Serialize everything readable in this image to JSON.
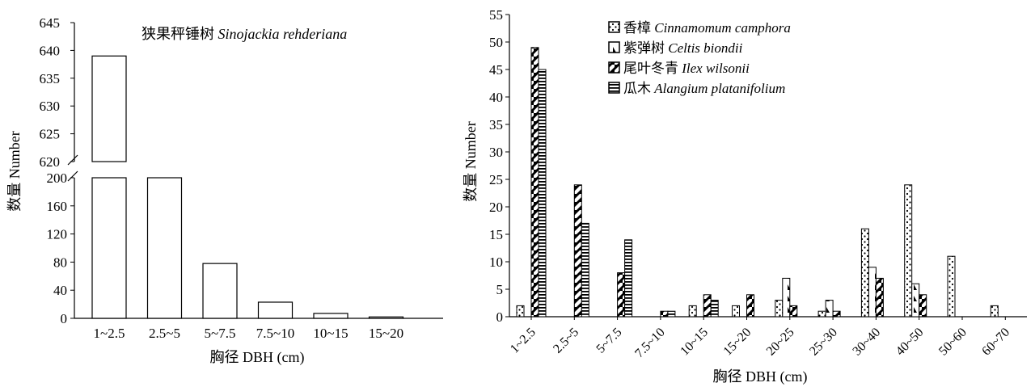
{
  "chart_data": [
    {
      "type": "bar",
      "title": "狭果秤锤树 Sinojackia rehderiana",
      "xlabel": "胸径 DBH (cm)",
      "ylabel": "数量 Number",
      "categories": [
        "1~2.5",
        "2.5~5",
        "5~7.5",
        "7.5~10",
        "10~15",
        "15~20"
      ],
      "values": [
        639,
        200,
        78,
        23,
        7,
        2
      ],
      "y_axis_break": {
        "lower_range": [
          0,
          200
        ],
        "upper_range": [
          620,
          645
        ],
        "lower_ticks": [
          "0",
          "40",
          "80",
          "120",
          "160",
          "200"
        ],
        "upper_ticks": [
          "620",
          "625",
          "630",
          "635",
          "640",
          "645"
        ]
      },
      "bar_fill": "#ffffff",
      "grid": false
    },
    {
      "type": "bar",
      "xlabel": "胸径 DBH (cm)",
      "ylabel": "数量 Number",
      "ylim": [
        0,
        55
      ],
      "y_ticks": [
        "0",
        "5",
        "10",
        "15",
        "20",
        "25",
        "30",
        "35",
        "40",
        "45",
        "50",
        "55"
      ],
      "categories": [
        "1~2.5",
        "2.5~5",
        "5~7.5",
        "7.5~10",
        "10~15",
        "15~20",
        "20~25",
        "25~30",
        "30~40",
        "40~50",
        "50~60",
        "60~70"
      ],
      "legend_position": "top-center",
      "grid": false,
      "series": [
        {
          "name": "香樟 Cinnamomum camphora",
          "pattern": "dots",
          "values": [
            2,
            0,
            0,
            0,
            2,
            2,
            3,
            1,
            16,
            24,
            11,
            2
          ]
        },
        {
          "name": "紫弹树 Celtis biondii",
          "pattern": "triangles",
          "values": [
            0,
            0,
            0,
            0,
            0,
            0,
            7,
            3,
            9,
            6,
            0,
            0
          ]
        },
        {
          "name": "尾叶冬青 Ilex wilsonii",
          "pattern": "checker",
          "values": [
            49,
            24,
            8,
            1,
            4,
            4,
            2,
            1,
            7,
            4,
            0,
            0
          ]
        },
        {
          "name": "瓜木 Alangium platanifolium",
          "pattern": "hstripes",
          "values": [
            45,
            17,
            14,
            1,
            3,
            0,
            0,
            0,
            0,
            0,
            0,
            0
          ]
        }
      ]
    }
  ]
}
